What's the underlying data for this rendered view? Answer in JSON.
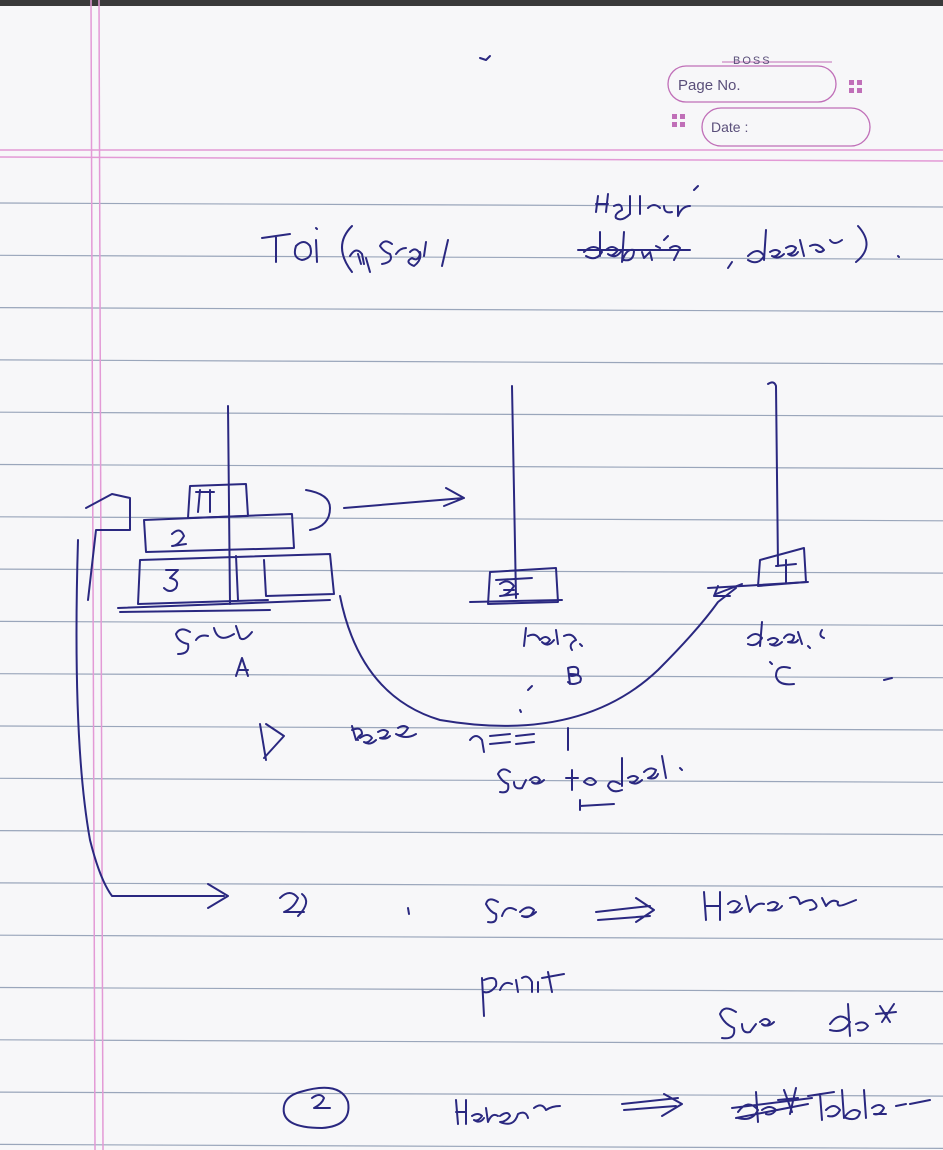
{
  "header": {
    "brand": "BOSS",
    "page_no_label": "Page No.",
    "date_label": "Date :",
    "date_separators": "|   |"
  },
  "notes": {
    "title_line": "ToH (n, src, helper, dest).",
    "title_helper_above": "Helper",
    "peg_a_label": "src",
    "peg_a_letter": "A",
    "peg_b_label": "helper",
    "peg_b_letter": "B",
    "peg_c_label": "dest",
    "peg_c_letter": "C",
    "disk_labels": [
      "1",
      "2",
      "3"
    ],
    "step1": "1) Base n == 1",
    "step1_sub": "src to dest",
    "step2": "2) src → Helper",
    "print_line": "print    src dest",
    "step3": "3) Helper → dest/table"
  },
  "colors": {
    "ink": "#2a2880",
    "ruling": "#9aa6bb",
    "margin": "#e39ad6",
    "paper": "#f7f7f9"
  }
}
